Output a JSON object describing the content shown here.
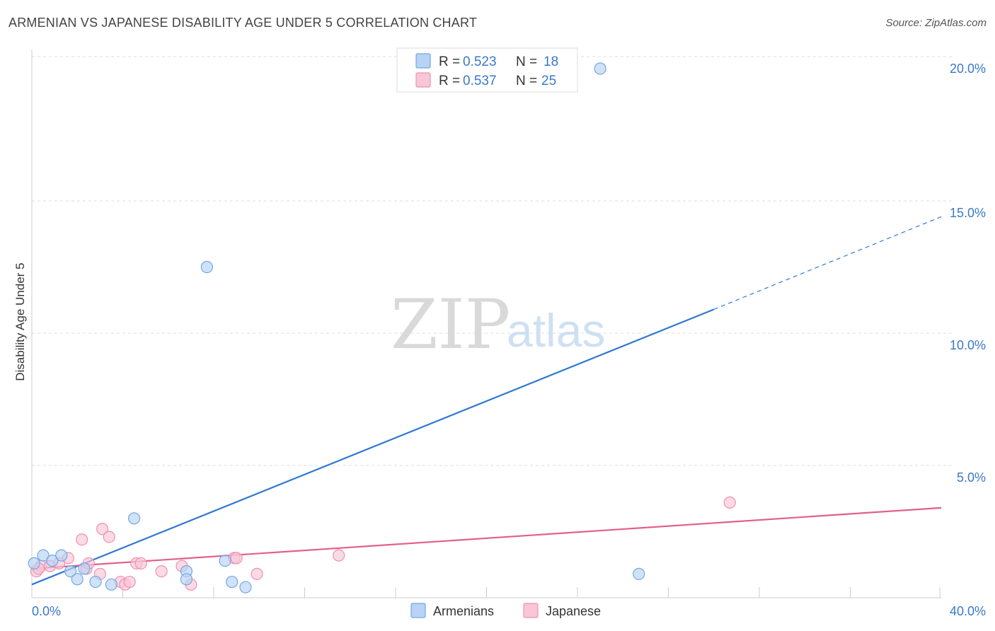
{
  "title": "ARMENIAN VS JAPANESE DISABILITY AGE UNDER 5 CORRELATION CHART",
  "source": "Source: ZipAtlas.com",
  "watermark": {
    "part1": "ZIP",
    "part2": "atlas"
  },
  "colors": {
    "armenians": "#6fa8e8",
    "armenians_fill": "#b8d3f3",
    "armenians_line": "#2f78d2",
    "japanese": "#f090b0",
    "japanese_fill": "#f8c6d6",
    "japanese_line": "#e0608e",
    "tick_text": "#3a78c9",
    "grid": "#dddddd"
  },
  "legend": {
    "r_label": "R =",
    "n_label": "N =",
    "rows": [
      {
        "series": "Armenians",
        "r": "0.523",
        "n": "18"
      },
      {
        "series": "Japanese",
        "r": "0.537",
        "n": "25"
      }
    ]
  },
  "chart_data": {
    "type": "scatter",
    "title": "ARMENIAN VS JAPANESE DISABILITY AGE UNDER 5 CORRELATION CHART",
    "xlabel": "",
    "ylabel": "Disability Age Under 5",
    "xlim": [
      0,
      40
    ],
    "ylim": [
      0,
      20.5
    ],
    "x_tick_labels": [
      "0.0%",
      "40.0%"
    ],
    "x_minor_ticks": [
      4,
      8,
      12,
      16,
      20,
      24,
      28,
      32,
      36,
      40
    ],
    "y_ticks": [
      5,
      10,
      15,
      20
    ],
    "y_tick_labels": [
      "5.0%",
      "10.0%",
      "15.0%",
      "20.0%"
    ],
    "grid": true,
    "legend_position": "top-center",
    "series": [
      {
        "name": "Armenians",
        "points": [
          [
            0.1,
            1.3
          ],
          [
            0.5,
            1.6
          ],
          [
            0.9,
            1.4
          ],
          [
            1.3,
            1.6
          ],
          [
            1.7,
            1.0
          ],
          [
            2.0,
            0.7
          ],
          [
            2.3,
            1.1
          ],
          [
            2.8,
            0.6
          ],
          [
            3.5,
            0.5
          ],
          [
            4.5,
            3.0
          ],
          [
            6.8,
            1.0
          ],
          [
            6.8,
            0.7
          ],
          [
            7.7,
            12.5
          ],
          [
            8.5,
            1.4
          ],
          [
            8.8,
            0.6
          ],
          [
            9.4,
            0.4
          ],
          [
            25.0,
            20.0
          ],
          [
            26.7,
            0.9
          ]
        ],
        "trend": {
          "x0": 0,
          "y0": 0.5,
          "x1": 30.0,
          "y1": 10.9,
          "dashed_to_x": 40,
          "dashed_to_y": 14.4
        }
      },
      {
        "name": "Japanese",
        "points": [
          [
            0.2,
            1.0
          ],
          [
            0.4,
            1.2
          ],
          [
            0.8,
            1.2
          ],
          [
            1.2,
            1.3
          ],
          [
            1.6,
            1.5
          ],
          [
            2.2,
            2.2
          ],
          [
            2.4,
            1.1
          ],
          [
            2.5,
            1.3
          ],
          [
            3.0,
            0.9
          ],
          [
            3.1,
            2.6
          ],
          [
            3.4,
            2.3
          ],
          [
            3.9,
            0.6
          ],
          [
            4.1,
            0.5
          ],
          [
            4.3,
            0.6
          ],
          [
            4.6,
            1.3
          ],
          [
            4.8,
            1.3
          ],
          [
            5.7,
            1.0
          ],
          [
            6.6,
            1.2
          ],
          [
            7.0,
            0.5
          ],
          [
            8.9,
            1.5
          ],
          [
            9.0,
            1.5
          ],
          [
            9.9,
            0.9
          ],
          [
            13.5,
            1.6
          ],
          [
            30.7,
            3.6
          ],
          [
            0.3,
            1.1
          ]
        ],
        "trend": {
          "x0": 0,
          "y0": 1.1,
          "x1": 40,
          "y1": 3.4
        }
      }
    ]
  },
  "bottom_legend": [
    {
      "label": "Armenians"
    },
    {
      "label": "Japanese"
    }
  ]
}
